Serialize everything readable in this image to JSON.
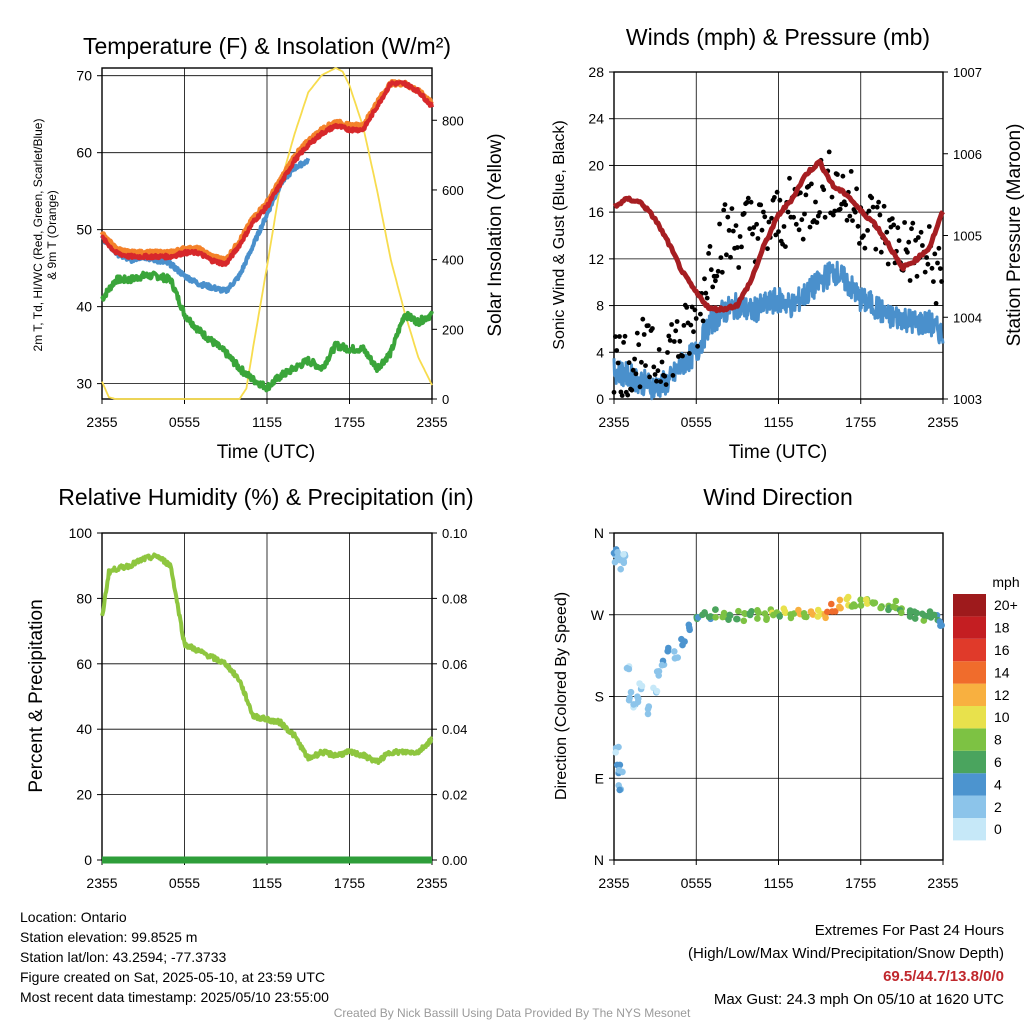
{
  "colors": {
    "red": "#d7282b",
    "orange": "#f4822a",
    "blue": "#4a90cc",
    "green": "#3aa53a",
    "yellow": "#f7dc4e",
    "maroon": "#a61e22",
    "rh": "#8ec63f",
    "precip": "#2e9e3a",
    "black": "#000000"
  },
  "panels": {
    "temp": {
      "title": "Temperature (F) & Insolation (W/m²)",
      "ylabel": "2m T, T_d, HI/WC (Red, Green, Scarlet/Blue) & 9m T (Orange)",
      "ylabel_line1": "2m T, Td, HI/WC (Red, Green, Scarlet/Blue)",
      "ylabel_line2": "& 9m T (Orange)",
      "ylabel_right": "Solar Insolation (Yellow)",
      "xlabel": "Time (UTC)",
      "left_ticks": [
        "30",
        "40",
        "50",
        "60",
        "70"
      ],
      "right_ticks": [
        "0",
        "200",
        "400",
        "600",
        "800"
      ]
    },
    "wind": {
      "title": "Winds (mph) & Pressure (mb)",
      "ylabel": "Sonic Wind & Gust (Blue, Black)",
      "ylabel_right": "Station Pressure (Maroon)",
      "xlabel": "Time (UTC)",
      "left_ticks": [
        "0",
        "4",
        "8",
        "12",
        "16",
        "20",
        "24",
        "28"
      ],
      "right_ticks": [
        "1003",
        "1004",
        "1005",
        "1006",
        "1007"
      ]
    },
    "rh": {
      "title": "Relative Humidity (%) & Precipitation (in)",
      "ylabel": "Percent & Precipitation",
      "left_ticks": [
        "0",
        "20",
        "40",
        "60",
        "80",
        "100"
      ],
      "right_ticks": [
        "0.00",
        "0.02",
        "0.04",
        "0.06",
        "0.08",
        "0.10"
      ]
    },
    "dir": {
      "title": "Wind Direction",
      "ylabel": "Direction (Colored By Speed)",
      "left_ticks": [
        "N",
        "E",
        "S",
        "W",
        "N"
      ],
      "legend_title": "mph",
      "legend_labels": [
        "0",
        "2",
        "4",
        "6",
        "8",
        "10",
        "12",
        "14",
        "16",
        "18",
        "20+"
      ],
      "legend_colors": [
        "#c6e8f8",
        "#8cc4ea",
        "#4c94cf",
        "#4aa45e",
        "#7dc243",
        "#e8e14c",
        "#f8b040",
        "#f06c2c",
        "#e03a2a",
        "#c41e22",
        "#9e1a1c"
      ]
    }
  },
  "x_ticks": [
    "2355",
    "0555",
    "1155",
    "1755",
    "2355"
  ],
  "info": {
    "location": "Location: Ontario",
    "elevation": "Station elevation: 99.8525 m",
    "latlon": "Station lat/lon: 43.2594; -77.3733",
    "created": "Figure created on Sat, 2025-05-10, at 23:59 UTC",
    "recent": "Most recent data timestamp: 2025/05/10 23:55:00"
  },
  "extremes": {
    "title": "Extremes For Past 24 Hours",
    "subtitle": "(High/Low/Max Wind/Precipitation/Snow Depth)",
    "values": "69.5/44.7/13.8/0/0",
    "gust": "Max Gust: 24.3 mph On 05/10 at 1620 UTC"
  },
  "credit": "Created By Nick Bassill Using Data Provided By The NYS Mesonet",
  "chart_data": [
    {
      "type": "line",
      "title": "Temperature (F) & Insolation (W/m²)",
      "xlabel": "Time (UTC)",
      "x_range_hours": [
        0,
        24
      ],
      "ylim": [
        28,
        71
      ],
      "y2lim": [
        0,
        950
      ],
      "series": [
        {
          "name": "2m T",
          "color": "#d7282b",
          "x": [
            0,
            1,
            2,
            3,
            4,
            5,
            6,
            7,
            8,
            9,
            10,
            11,
            12,
            13,
            14,
            15,
            16,
            17,
            18,
            19,
            20,
            21,
            22,
            23,
            24
          ],
          "y": [
            49,
            47,
            46.5,
            46.5,
            46.5,
            46.5,
            47,
            47,
            46,
            45.5,
            48,
            51,
            53,
            56,
            59,
            61,
            62.5,
            63.5,
            63,
            63,
            66,
            69,
            69,
            68,
            66
          ]
        },
        {
          "name": "9m T",
          "color": "#f4822a",
          "x": [
            0,
            1,
            2,
            3,
            4,
            5,
            6,
            7,
            8,
            9,
            10,
            11,
            12,
            13,
            14,
            15,
            16,
            17,
            18,
            19,
            20,
            21,
            22,
            23,
            24
          ],
          "y": [
            49.5,
            47.5,
            47,
            47,
            47,
            47,
            47.5,
            47.5,
            46.5,
            46,
            48.5,
            51.5,
            53.5,
            56.5,
            59.5,
            61.5,
            63,
            64,
            63.5,
            63.5,
            66.5,
            69,
            69,
            68,
            66.5
          ]
        },
        {
          "name": "HI/WC",
          "color": "#4a90cc",
          "x": [
            0,
            1,
            2,
            3,
            4,
            5,
            6,
            7,
            8,
            9,
            10,
            11,
            12,
            13,
            14,
            15
          ],
          "y": [
            49,
            47,
            46,
            46.5,
            46,
            45.5,
            44,
            43,
            42.5,
            42,
            44,
            48,
            52,
            56,
            58,
            59
          ]
        },
        {
          "name": "2m Td",
          "color": "#3aa53a",
          "x": [
            0,
            1,
            2,
            3,
            4,
            5,
            6,
            7,
            8,
            9,
            10,
            11,
            12,
            13,
            14,
            15,
            16,
            17,
            18,
            19,
            20,
            21,
            22,
            23,
            24
          ],
          "y": [
            41,
            43.5,
            43.5,
            44,
            44,
            43.5,
            39,
            37,
            35.5,
            34,
            32,
            30.5,
            29.5,
            31,
            32,
            33,
            32,
            35,
            34.5,
            34.5,
            32,
            34,
            39,
            38,
            39
          ]
        },
        {
          "name": "Solar Insolation",
          "axis": "right",
          "color": "#f7dc4e",
          "x": [
            0,
            0.5,
            1,
            2,
            3,
            4,
            5,
            6,
            7,
            8,
            9,
            10,
            10.5,
            11,
            12,
            13,
            14,
            15,
            16,
            17,
            17.5,
            18,
            19,
            20,
            21,
            22,
            23,
            24
          ],
          "y": [
            50,
            5,
            0,
            0,
            0,
            0,
            0,
            0,
            0,
            0,
            0,
            0,
            30,
            150,
            380,
            620,
            760,
            880,
            930,
            950,
            940,
            900,
            780,
            600,
            400,
            250,
            120,
            40
          ]
        }
      ]
    },
    {
      "type": "line",
      "title": "Winds (mph) & Pressure (mb)",
      "xlabel": "Time (UTC)",
      "x_range_hours": [
        0,
        24
      ],
      "ylim": [
        0,
        28
      ],
      "y2lim": [
        1003,
        1007
      ],
      "series": [
        {
          "name": "Sonic Wind",
          "color": "#4a90cc",
          "x": [
            0,
            1,
            2,
            3,
            4,
            5,
            6,
            7,
            8,
            9,
            10,
            11,
            12,
            13,
            14,
            15,
            16,
            17,
            18,
            19,
            20,
            21,
            22,
            23,
            24
          ],
          "y": [
            2.5,
            2,
            1.5,
            1,
            1.5,
            3,
            4,
            6.5,
            7.5,
            8,
            7.5,
            8,
            8.5,
            8,
            9,
            10,
            11,
            10,
            8.5,
            8,
            7,
            7,
            6.5,
            6.5,
            5.5
          ]
        },
        {
          "name": "Gust",
          "color": "#000000",
          "x": [
            0,
            1,
            2,
            3,
            4,
            5,
            6,
            7,
            8,
            9,
            10,
            11,
            12,
            13,
            14,
            15,
            16,
            17,
            18,
            19,
            20,
            21,
            22,
            23,
            24
          ],
          "y": [
            3.5,
            3,
            4,
            3,
            4.5,
            5,
            6.5,
            12,
            14,
            14,
            15,
            14,
            15.5,
            16,
            16.5,
            18,
            18.5,
            17,
            16,
            15,
            14,
            13,
            12.5,
            12,
            10
          ]
        },
        {
          "name": "Station Pressure",
          "axis": "right",
          "color": "#a61e22",
          "x": [
            0,
            1,
            2,
            3,
            4,
            5,
            6,
            7,
            8,
            9,
            10,
            11,
            12,
            13,
            14,
            15,
            16,
            17,
            18,
            19,
            20,
            21,
            22,
            23,
            24
          ],
          "y": [
            1005.35,
            1005.45,
            1005.4,
            1005.2,
            1004.9,
            1004.55,
            1004.3,
            1004.1,
            1004.1,
            1004.15,
            1004.45,
            1004.9,
            1005.25,
            1005.45,
            1005.75,
            1005.9,
            1005.6,
            1005.5,
            1005.3,
            1005.15,
            1004.9,
            1004.6,
            1004.7,
            1004.85,
            1005.3
          ]
        }
      ]
    },
    {
      "type": "line",
      "title": "Relative Humidity (%) & Precipitation (in)",
      "x_range_hours": [
        0,
        24
      ],
      "ylim": [
        0,
        100
      ],
      "y2lim": [
        0,
        0.1
      ],
      "series": [
        {
          "name": "Relative Humidity",
          "color": "#8ec63f",
          "x": [
            0,
            0.5,
            1,
            2,
            3,
            4,
            5,
            5.5,
            6,
            7,
            8,
            9,
            10,
            11,
            12,
            13,
            14,
            15,
            16,
            17,
            18,
            19,
            20,
            21,
            22,
            23,
            24
          ],
          "y": [
            74,
            88,
            89,
            90,
            92,
            93,
            90,
            78,
            66,
            64,
            62,
            60,
            55,
            44,
            43,
            42,
            38,
            31,
            33,
            32,
            33,
            32,
            30,
            33,
            33,
            33,
            37
          ]
        },
        {
          "name": "Precipitation",
          "axis": "right",
          "color": "#2e9e3a",
          "x": [
            0,
            24
          ],
          "y": [
            0,
            0
          ]
        }
      ]
    },
    {
      "type": "scatter",
      "title": "Wind Direction",
      "ylabel": "Direction (Colored By Speed)",
      "x_range_hours": [
        0,
        24
      ],
      "y_range_deg": [
        0,
        360
      ],
      "points_hour_deg_mph": [
        [
          0.1,
          340,
          3
        ],
        [
          0.2,
          330,
          2
        ],
        [
          0.4,
          335,
          3
        ],
        [
          0.6,
          325,
          2
        ],
        [
          0.8,
          335,
          1
        ],
        [
          0.3,
          100,
          4
        ],
        [
          0.4,
          80,
          3
        ],
        [
          0.2,
          120,
          1
        ],
        [
          0.5,
          95,
          2
        ],
        [
          1.0,
          210,
          1
        ],
        [
          1.2,
          180,
          2
        ],
        [
          1.5,
          170,
          1
        ],
        [
          1.8,
          175,
          2
        ],
        [
          2.0,
          190,
          1
        ],
        [
          2.5,
          165,
          2
        ],
        [
          3.0,
          185,
          1
        ],
        [
          3.3,
          205,
          2
        ],
        [
          3.6,
          215,
          3
        ],
        [
          4.0,
          230,
          3
        ],
        [
          4.5,
          225,
          2
        ],
        [
          5.0,
          240,
          4
        ],
        [
          5.5,
          255,
          4
        ],
        [
          6.0,
          265,
          5
        ],
        [
          6.5,
          270,
          6
        ],
        [
          7.0,
          268,
          5
        ],
        [
          7.5,
          272,
          7
        ],
        [
          8.0,
          270,
          8
        ],
        [
          8.5,
          265,
          6
        ],
        [
          9.0,
          270,
          7
        ],
        [
          9.5,
          268,
          8
        ],
        [
          10.0,
          272,
          6
        ],
        [
          10.5,
          270,
          7
        ],
        [
          11.0,
          267,
          8
        ],
        [
          11.5,
          272,
          9
        ],
        [
          12.0,
          270,
          7
        ],
        [
          12.5,
          275,
          10
        ],
        [
          13.0,
          270,
          8
        ],
        [
          13.5,
          272,
          11
        ],
        [
          14.0,
          268,
          9
        ],
        [
          14.5,
          275,
          12
        ],
        [
          15.0,
          273,
          10
        ],
        [
          15.5,
          270,
          13
        ],
        [
          16.0,
          278,
          14
        ],
        [
          16.5,
          282,
          12
        ],
        [
          17.0,
          285,
          10
        ],
        [
          17.5,
          280,
          9
        ],
        [
          18.0,
          282,
          8
        ],
        [
          18.5,
          285,
          9
        ],
        [
          19.0,
          280,
          8
        ],
        [
          19.5,
          275,
          7
        ],
        [
          20.0,
          278,
          7
        ],
        [
          20.5,
          282,
          8
        ],
        [
          21.0,
          276,
          7
        ],
        [
          21.5,
          272,
          6
        ],
        [
          22.0,
          270,
          6
        ],
        [
          22.5,
          268,
          7
        ],
        [
          23.0,
          272,
          6
        ],
        [
          23.5,
          265,
          5
        ],
        [
          23.8,
          262,
          4
        ]
      ]
    }
  ]
}
